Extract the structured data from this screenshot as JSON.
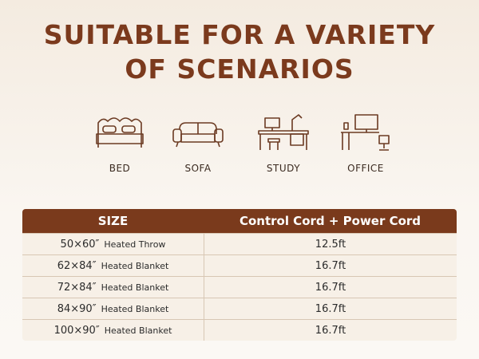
{
  "header": {
    "title_lines": [
      "SUITABLE FOR A VARIETY",
      "OF SCENARIOS"
    ]
  },
  "scenarios": [
    {
      "label": "BED"
    },
    {
      "label": "SOFA"
    },
    {
      "label": "STUDY"
    },
    {
      "label": "OFFICE"
    }
  ],
  "table": {
    "columns": [
      "SIZE",
      "Control Cord + Power Cord"
    ],
    "rows": [
      {
        "size": "50×60″",
        "type": "Heated Throw",
        "cord": "12.5ft"
      },
      {
        "size": "62×84″",
        "type": "Heated Blanket",
        "cord": "16.7ft"
      },
      {
        "size": "72×84″",
        "type": "Heated Blanket",
        "cord": "16.7ft"
      },
      {
        "size": "84×90″",
        "type": "Heated Blanket",
        "cord": "16.7ft"
      },
      {
        "size": "100×90″",
        "type": "Heated Blanket",
        "cord": "16.7ft"
      }
    ]
  }
}
